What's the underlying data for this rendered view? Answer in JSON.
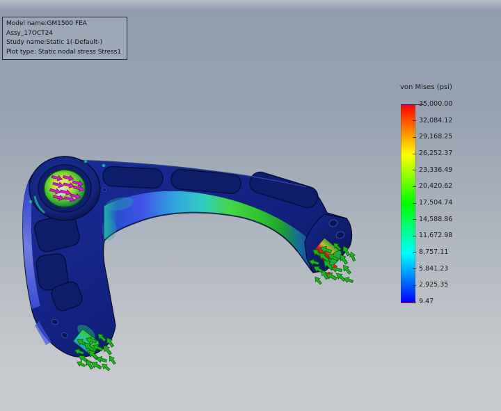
{
  "viewport": {
    "annotation": {
      "model_name": "Model name:GM1500 FEA Assy_17OCT24",
      "study_name": "Study name:Static 1(-Default-)",
      "plot_type": "Plot type: Static nodal stress Stress1"
    },
    "legend": {
      "title": "von Mises (psi)",
      "labels": [
        "35,000.00",
        "32,084.12",
        "29,168.25",
        "26,252.37",
        "23,336.49",
        "20,420.62",
        "17,504.74",
        "14,588.86",
        "11,672.98",
        "8,757.11",
        "5,841.23",
        "2,925.35",
        "9.47"
      ],
      "max": "35,000.00",
      "min": "9.47",
      "scale_colors": [
        "#ff0000",
        "#ff8000",
        "#ffff00",
        "#80ff00",
        "#00ff00",
        "#00ff80",
        "#00ffff",
        "#0080ff",
        "#0000ff"
      ]
    },
    "model": {
      "load_arrow_color": "#1db41d",
      "fixture_arrow_color": "#cc22c4",
      "hot_spot_color": "#d42424",
      "body_color": "#13258c"
    }
  }
}
